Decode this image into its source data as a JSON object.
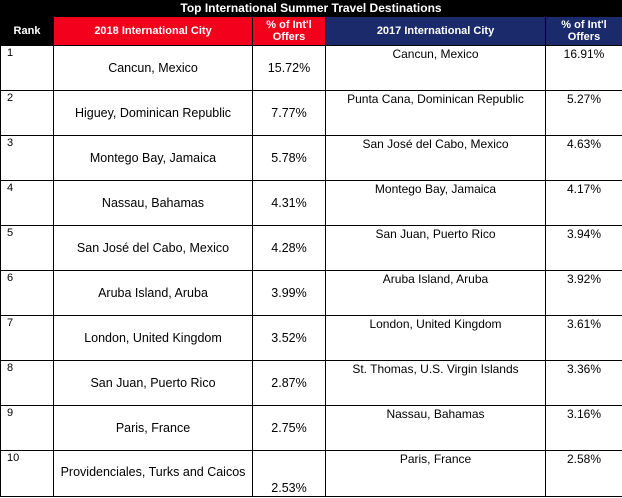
{
  "title": "Top International Summer Travel Destinations",
  "headers": {
    "rank": "Rank",
    "city_2018": "2018 International City",
    "pct_2018": "% of Int'l Offers",
    "city_2017": "2017 International City",
    "pct_2017": "% of Int'l Offers"
  },
  "colors": {
    "header_2018": "#f2001c",
    "header_2017": "#1b2a6b",
    "title_bar": "#000000"
  },
  "rows": [
    {
      "rank": "1",
      "city_2018": "Cancun, Mexico",
      "pct_2018": "15.72%",
      "city_2017": "Cancun, Mexico",
      "pct_2017": "16.91%"
    },
    {
      "rank": "2",
      "city_2018": "Higuey, Dominican Republic",
      "pct_2018": "7.77%",
      "city_2017": "Punta Cana, Dominican Republic",
      "pct_2017": "5.27%"
    },
    {
      "rank": "3",
      "city_2018": "Montego Bay, Jamaica",
      "pct_2018": "5.78%",
      "city_2017": "San José del Cabo, Mexico",
      "pct_2017": "4.63%"
    },
    {
      "rank": "4",
      "city_2018": "Nassau, Bahamas",
      "pct_2018": "4.31%",
      "city_2017": "Montego Bay, Jamaica",
      "pct_2017": "4.17%"
    },
    {
      "rank": "5",
      "city_2018": "San José del Cabo, Mexico",
      "pct_2018": "4.28%",
      "city_2017": "San Juan, Puerto Rico",
      "pct_2017": "3.94%"
    },
    {
      "rank": "6",
      "city_2018": "Aruba Island, Aruba",
      "pct_2018": "3.99%",
      "city_2017": "Aruba Island, Aruba",
      "pct_2017": "3.92%"
    },
    {
      "rank": "7",
      "city_2018": "London, United Kingdom",
      "pct_2018": "3.52%",
      "city_2017": "London, United Kingdom",
      "pct_2017": "3.61%"
    },
    {
      "rank": "8",
      "city_2018": "San Juan, Puerto Rico",
      "pct_2018": "2.87%",
      "city_2017": "St. Thomas, U.S. Virgin Islands",
      "pct_2017": "3.36%"
    },
    {
      "rank": "9",
      "city_2018": "Paris, France",
      "pct_2018": "2.75%",
      "city_2017": "Nassau, Bahamas",
      "pct_2017": "3.16%"
    },
    {
      "rank": "10",
      "city_2018": "Providenciales, Turks and Caicos",
      "pct_2018": "2.53%",
      "city_2017": "Paris, France",
      "pct_2017": "2.58%"
    }
  ]
}
